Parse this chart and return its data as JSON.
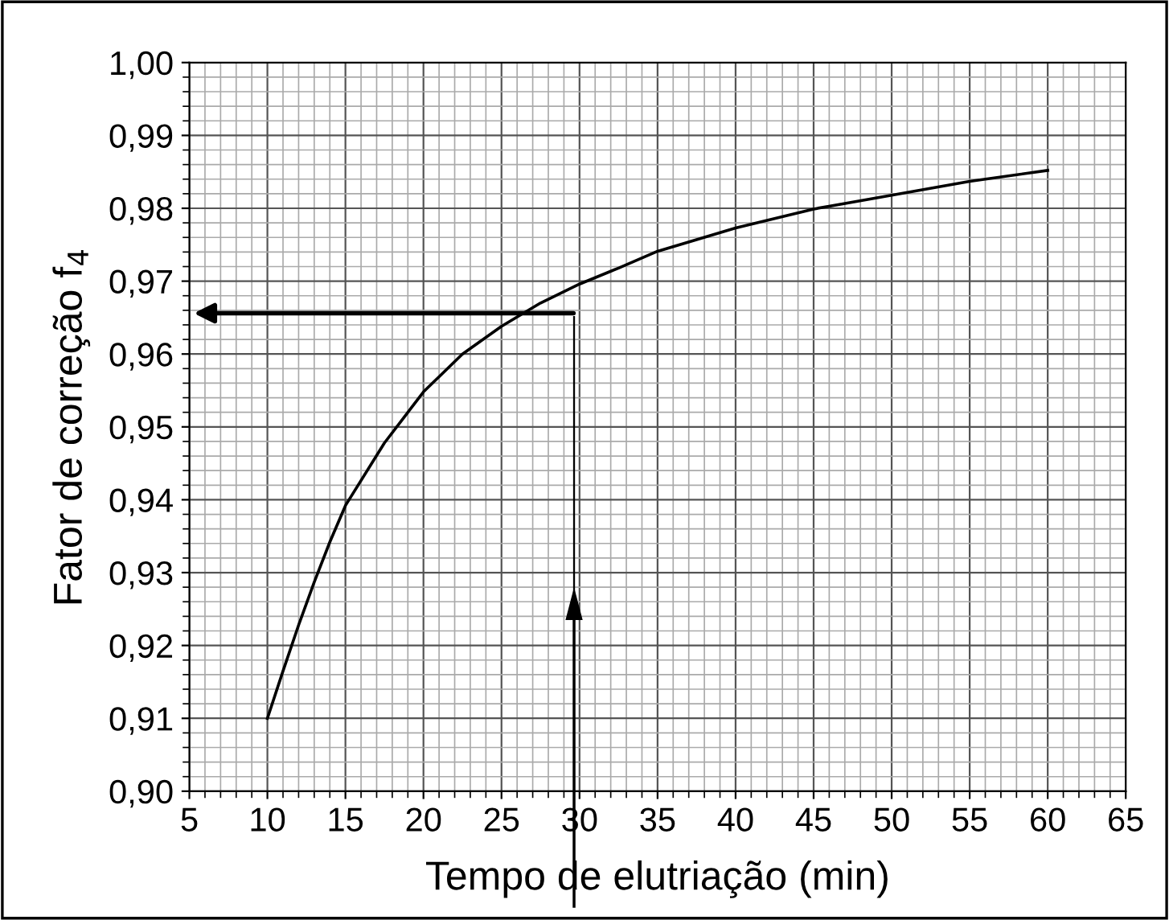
{
  "chart_data": {
    "type": "line",
    "xlabel": "Tempo de elutriação (min)",
    "ylabel": "Fator de correção f$_{4}$",
    "x": [
      10,
      11,
      12,
      13,
      14,
      15,
      17.5,
      20,
      22.5,
      25,
      27.5,
      30,
      32.5,
      35,
      40,
      45,
      50,
      55,
      60
    ],
    "series": [
      {
        "color": "#000000",
        "values": [
          0.91,
          0.9165,
          0.9228,
          0.9287,
          0.9342,
          0.9392,
          0.9478,
          0.9548,
          0.96,
          0.9638,
          0.967,
          0.9696,
          0.9718,
          0.9741,
          0.9773,
          0.9799,
          0.9818,
          0.9837,
          0.9852
        ]
      }
    ],
    "xlim": [
      5,
      65
    ],
    "xticks": [
      5,
      10,
      15,
      20,
      25,
      30,
      35,
      40,
      45,
      50,
      55,
      60,
      65
    ],
    "ylim": [
      0.9,
      1.0
    ],
    "yticks": [
      {
        "value": 0.9,
        "label": "0,90"
      },
      {
        "value": 0.91,
        "label": "0,91"
      },
      {
        "value": 0.92,
        "label": "0,92"
      },
      {
        "value": 0.93,
        "label": "0,93"
      },
      {
        "value": 0.94,
        "label": "0,94"
      },
      {
        "value": 0.95,
        "label": "0,95"
      },
      {
        "value": 0.96,
        "label": "0,96"
      },
      {
        "value": 0.97,
        "label": "0,97"
      },
      {
        "value": 0.98,
        "label": "0,98"
      },
      {
        "value": 0.99,
        "label": "0,99"
      },
      {
        "value": 1.0,
        "label": "1,00"
      }
    ],
    "grid": true,
    "marker": "none",
    "line_style": "solid"
  }
}
